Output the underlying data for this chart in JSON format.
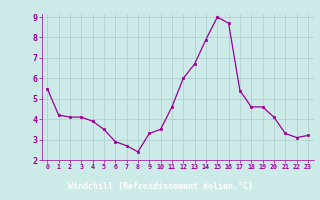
{
  "x": [
    0,
    1,
    2,
    3,
    4,
    5,
    6,
    7,
    8,
    9,
    10,
    11,
    12,
    13,
    14,
    15,
    16,
    17,
    18,
    19,
    20,
    21,
    22,
    23
  ],
  "y": [
    5.5,
    4.2,
    4.1,
    4.1,
    3.9,
    3.5,
    2.9,
    2.7,
    2.4,
    3.3,
    3.5,
    4.6,
    6.0,
    6.7,
    7.9,
    9.0,
    8.7,
    5.4,
    4.6,
    4.6,
    4.1,
    3.3,
    3.1,
    3.2
  ],
  "xlabel": "Windchill (Refroidissement éolien,°C)",
  "ylim": [
    2,
    9
  ],
  "xlim": [
    -0.5,
    23.5
  ],
  "yticks": [
    2,
    3,
    4,
    5,
    6,
    7,
    8,
    9
  ],
  "xticks": [
    0,
    1,
    2,
    3,
    4,
    5,
    6,
    7,
    8,
    9,
    10,
    11,
    12,
    13,
    14,
    15,
    16,
    17,
    18,
    19,
    20,
    21,
    22,
    23
  ],
  "line_color": "#990099",
  "marker_color": "#990099",
  "bg_color": "#cceae8",
  "grid_color": "#aacccc",
  "label_color": "#990099",
  "xlabel_bg": "#990099",
  "xlabel_fg": "#ffffff"
}
